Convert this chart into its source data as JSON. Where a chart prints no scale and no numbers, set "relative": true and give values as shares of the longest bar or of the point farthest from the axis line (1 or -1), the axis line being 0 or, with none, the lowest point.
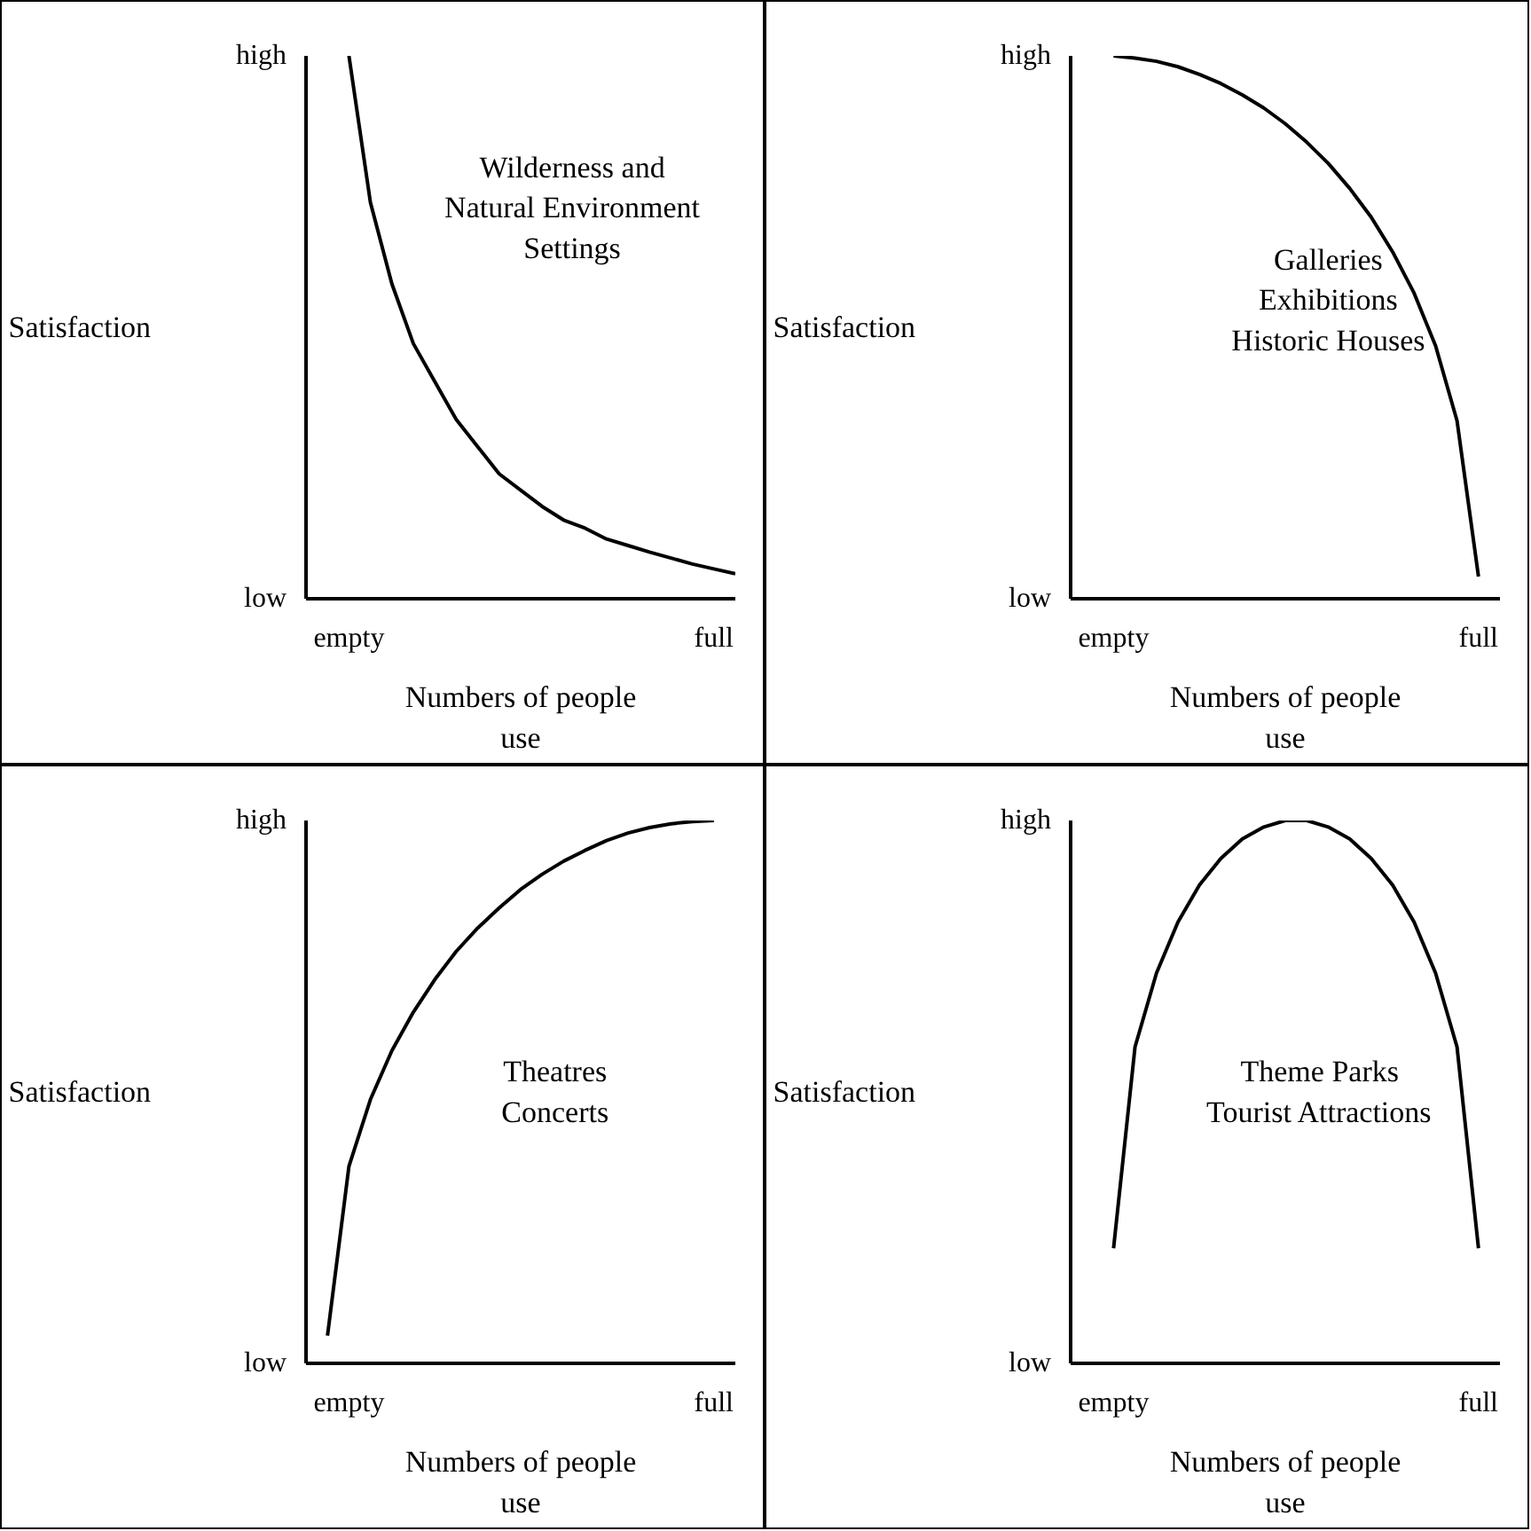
{
  "chart_data": [
    {
      "type": "line",
      "relative": true,
      "xlabel": "Numbers of people\nuse",
      "ylabel": "Satisfaction",
      "annotations": [
        "Wilderness and\nNatural Environment\nSettings",
        "high",
        "low"
      ],
      "categories": [
        null,
        null,
        "empty",
        null,
        null,
        null,
        null,
        null,
        null,
        null,
        null,
        null,
        null,
        null,
        null,
        null,
        null,
        null,
        null,
        "full",
        null
      ],
      "series": [
        {
          "color": "#000000",
          "values": [
            null,
            null,
            1.0,
            0.73,
            0.58,
            0.47,
            0.4,
            0.33,
            0.28,
            0.23,
            0.2,
            0.17,
            0.145,
            0.13,
            0.11,
            0.098,
            0.086,
            0.075,
            0.064,
            0.055,
            0.046
          ]
        }
      ]
    },
    {
      "type": "line",
      "relative": true,
      "xlabel": "Numbers of people\nuse",
      "ylabel": "Satisfaction",
      "annotations": [
        "Galleries\nExhibitions\nHistoric Houses",
        "high",
        "low"
      ],
      "categories": [
        null,
        null,
        "empty",
        null,
        null,
        null,
        null,
        null,
        null,
        null,
        null,
        null,
        null,
        null,
        null,
        null,
        null,
        null,
        null,
        "full",
        null
      ],
      "series": [
        {
          "color": "#000000",
          "values": [
            null,
            null,
            1.0,
            0.996,
            0.99,
            0.98,
            0.966,
            0.949,
            0.928,
            0.904,
            0.875,
            0.841,
            0.802,
            0.756,
            0.703,
            0.639,
            0.563,
            0.466,
            0.328,
            0.041,
            null
          ]
        }
      ]
    },
    {
      "type": "line",
      "relative": true,
      "xlabel": "Numbers of people\nuse",
      "ylabel": "Satisfaction",
      "annotations": [
        "Theatres\nConcerts",
        "high",
        "low"
      ],
      "categories": [
        null,
        null,
        "empty",
        null,
        null,
        null,
        null,
        null,
        null,
        null,
        null,
        null,
        null,
        null,
        null,
        null,
        null,
        null,
        null,
        "full",
        null
      ],
      "series": [
        {
          "color": "#000000",
          "values": [
            null,
            0.051,
            0.363,
            0.486,
            0.576,
            0.647,
            0.707,
            0.759,
            0.802,
            0.839,
            0.873,
            0.901,
            0.925,
            0.945,
            0.963,
            0.977,
            0.987,
            0.994,
            0.998,
            1.0,
            null
          ]
        }
      ]
    },
    {
      "type": "line",
      "relative": true,
      "xlabel": "Numbers of people\nuse",
      "ylabel": "Satisfaction",
      "annotations": [
        "Theme Parks\nTourist Attractions",
        "high",
        "low"
      ],
      "categories": [
        null,
        null,
        "empty",
        null,
        null,
        null,
        null,
        null,
        null,
        null,
        null,
        null,
        null,
        null,
        null,
        null,
        null,
        null,
        null,
        "full",
        null
      ],
      "series": [
        {
          "color": "#000000",
          "values": [
            null,
            null,
            0.212,
            0.583,
            0.719,
            0.813,
            0.881,
            0.93,
            0.966,
            0.988,
            1.0,
            1.0,
            0.988,
            0.966,
            0.93,
            0.881,
            0.813,
            0.719,
            0.583,
            0.212,
            null
          ]
        }
      ]
    }
  ]
}
